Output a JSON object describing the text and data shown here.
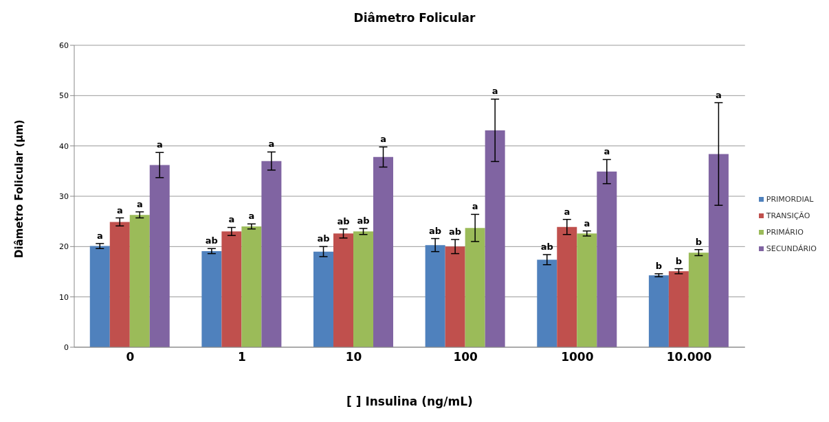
{
  "chart_data": {
    "type": "bar",
    "title": "Diâmetro Folicular",
    "xlabel": "[ ] Insulina (ng/mL)",
    "ylabel": "Diâmetro Folicular  (µm)",
    "categories": [
      "0",
      "1",
      "10",
      "100",
      "1000",
      "10.000"
    ],
    "series": [
      {
        "name": "PRIMORDIAL",
        "color": "#4f81bd",
        "values": [
          20.1,
          19.1,
          19.0,
          20.3,
          17.4,
          14.3
        ],
        "errors": [
          0.5,
          0.5,
          1.0,
          1.3,
          1.0,
          0.3
        ],
        "value_labels": [
          "a",
          "ab",
          "ab",
          "ab",
          "ab",
          "b"
        ]
      },
      {
        "name": "TRANSIÇÃO",
        "color": "#c0504d",
        "values": [
          24.9,
          23.0,
          22.6,
          20.0,
          23.9,
          15.1
        ],
        "errors": [
          0.8,
          0.8,
          0.9,
          1.4,
          1.5,
          0.5
        ],
        "value_labels": [
          "a",
          "a",
          "ab",
          "ab",
          "a",
          "b"
        ]
      },
      {
        "name": "PRIMÁRIO",
        "color": "#9bbb59",
        "values": [
          26.3,
          24.0,
          23.0,
          23.7,
          22.6,
          18.8
        ],
        "errors": [
          0.6,
          0.5,
          0.6,
          2.7,
          0.5,
          0.6
        ],
        "value_labels": [
          "a",
          "a",
          "ab",
          "a",
          "a",
          "b"
        ]
      },
      {
        "name": "SECUNDÁRIO",
        "color": "#8064a2",
        "values": [
          36.2,
          37.0,
          37.8,
          43.1,
          34.9,
          38.4
        ],
        "errors": [
          2.5,
          1.8,
          2.0,
          6.2,
          2.4,
          10.2
        ],
        "value_labels": [
          "a",
          "a",
          "a",
          null,
          "a",
          null
        ]
      }
    ],
    "annotations": [
      "a",
      "a"
    ],
    "ylim": [
      0,
      60
    ],
    "yticks": [
      0,
      10,
      20,
      30,
      40,
      50,
      60
    ],
    "grid": "y",
    "legend": "right"
  }
}
